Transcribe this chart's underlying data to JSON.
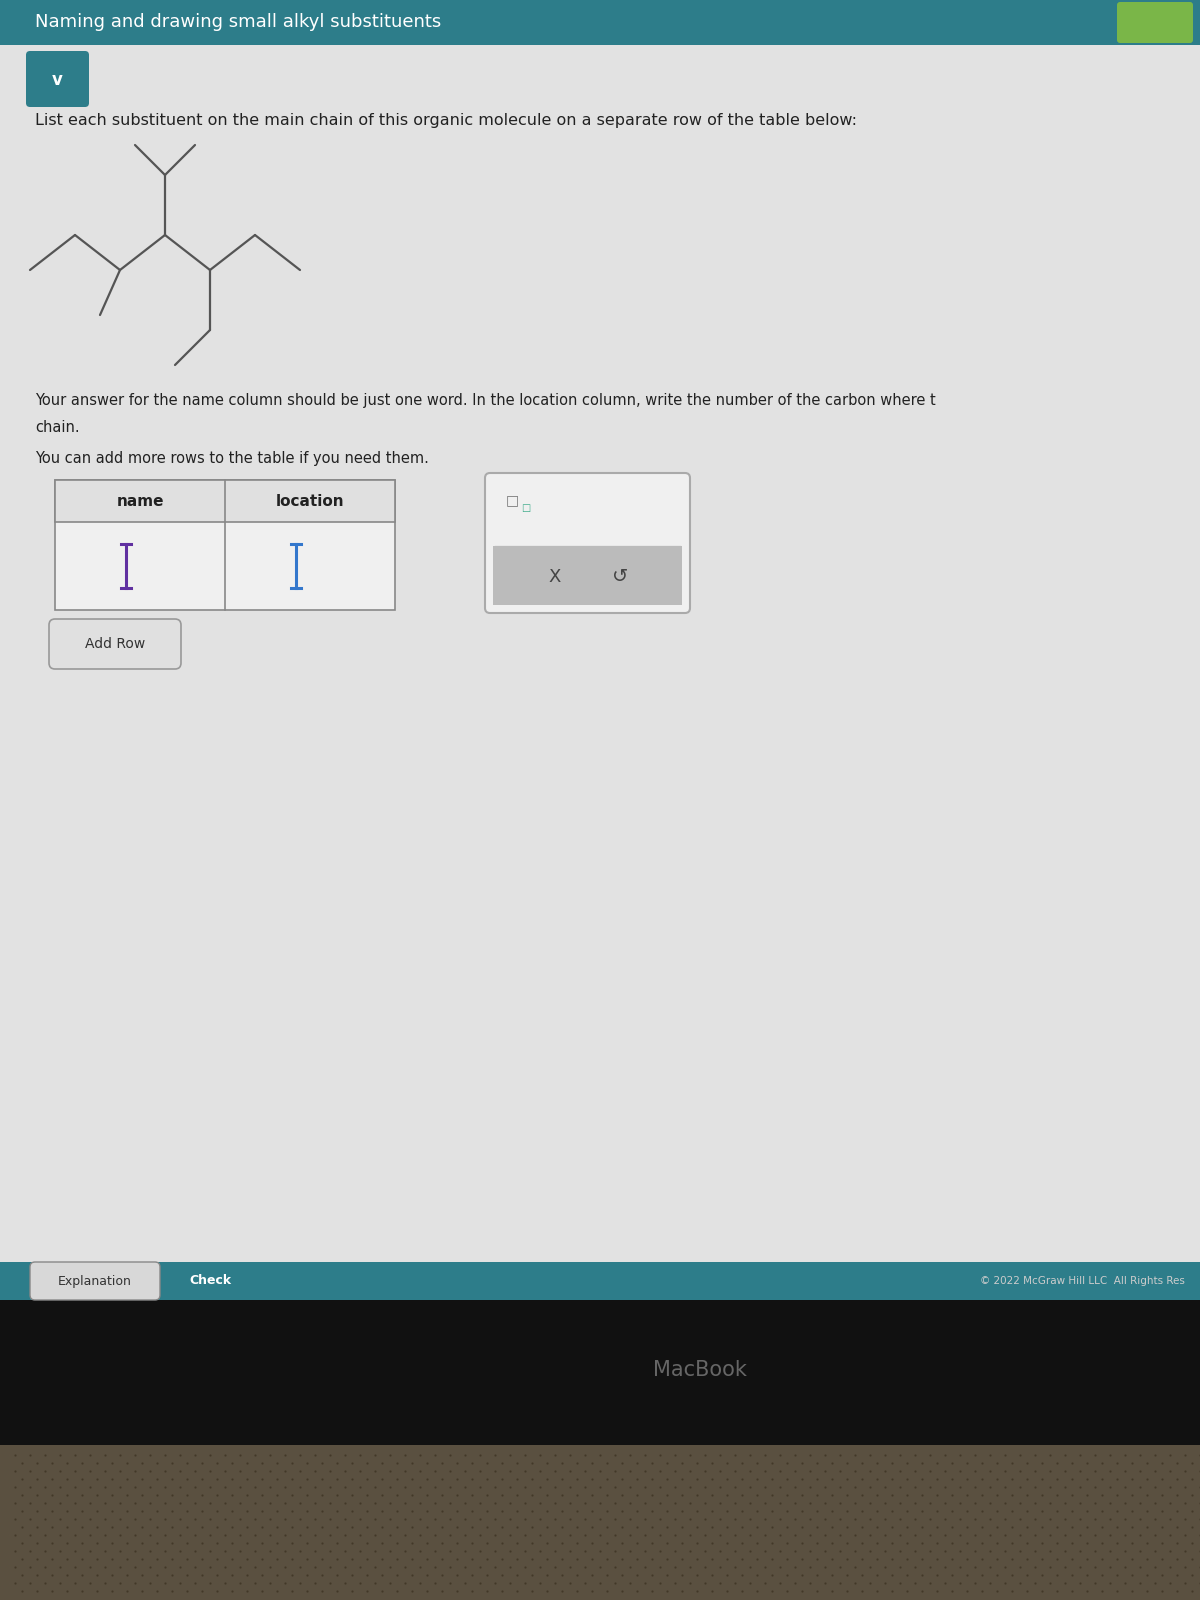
{
  "title_bar_color": "#2d7d8a",
  "title_bar_text": "Naming and drawing small alkyl substituents",
  "title_bar_text_color": "#ffffff",
  "title_bar_font_size": 13,
  "background_color": "#c8c8c8",
  "content_bg": "#e2e2e2",
  "chevron_color": "#2d7d8a",
  "body_text_1": "List each substituent on the main chain of this organic molecule on a separate row of the table below:",
  "body_text_1_fontsize": 11.5,
  "body_text_2": "Your answer for the **name** column should be just one word. In the *location* column, write the number of the carbon where t",
  "body_text_2_plain": "Your answer for the name column should be just one word. In the location column, write the number of the carbon where t",
  "body_text_2b": "chain.",
  "body_text_2_fontsize": 10.5,
  "body_text_3": "You can add more rows to the table if you need them.",
  "body_text_3_fontsize": 10.5,
  "col_name": "name",
  "col_location": "location",
  "input_cursor_color_1": "#6030a0",
  "input_cursor_color_2": "#3377cc",
  "add_row_btn_text": "Add Row",
  "popup_bg": "#f0f0f0",
  "popup_border": "#aaaaaa",
  "popup_bottom_bg": "#bbbbbb",
  "explanation_btn_text": "Explanation",
  "check_btn_text": "Check",
  "check_btn_bg": "#2d7d8a",
  "check_btn_text_color": "#ffffff",
  "bottom_bar_color": "#2d7d8a",
  "copyright_text": "© 2022 McGraw Hill LLC  All Rights Res",
  "copyright_fontsize": 7.5,
  "macbook_text": "MacBook",
  "green_btn_color": "#7ab648",
  "molecule_color": "#555555",
  "molecule_lw": 1.6
}
